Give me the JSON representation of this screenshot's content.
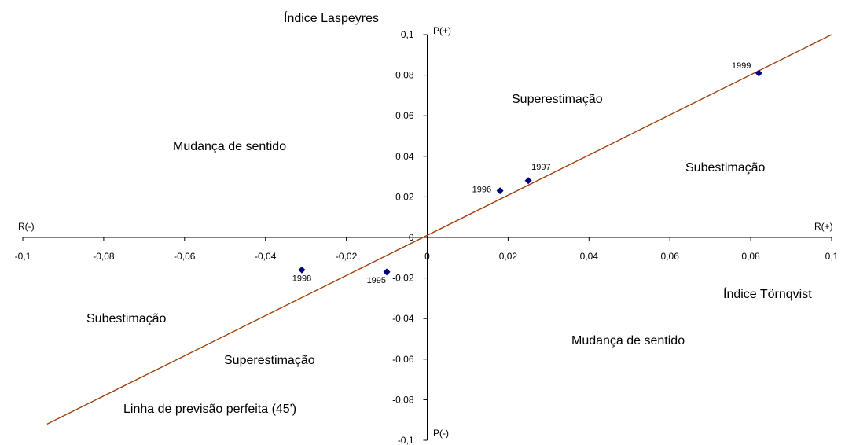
{
  "chart_data": {
    "type": "scatter",
    "ylabel": "Índice Laspeyres",
    "xlabel": "Índice Törnqvist",
    "xlim": [
      -0.1,
      0.1
    ],
    "ylim": [
      -0.1,
      0.1
    ],
    "x_ticks": [
      "-0,1",
      "-0,08",
      "-0,06",
      "-0,04",
      "-0,02",
      "0",
      "0,02",
      "0,04",
      "0,06",
      "0,08",
      "0,1"
    ],
    "y_ticks": [
      "0,1",
      "0,08",
      "0,06",
      "0,04",
      "0,02",
      "0",
      "-0,02",
      "-0,04",
      "-0,06",
      "-0,08",
      "-0,1"
    ],
    "direction_labels": {
      "p_plus": "P(+)",
      "p_minus": "P(-)",
      "r_plus": "R(+)",
      "r_minus": "R(-)"
    },
    "region_labels": {
      "superestimacao_top": "Superestimação",
      "subestimacao_right": "Subestimação",
      "mudanca_top_left": "Mudança de sentido",
      "mudanca_bottom_right": "Mudança de sentido",
      "subestimacao_left": "Subestimação",
      "superestimacao_bottom": "Superestimação",
      "linha": "Linha de previsão perfeita (45')"
    },
    "points": [
      {
        "label": "1995",
        "x": -0.01,
        "y": -0.017
      },
      {
        "label": "1996",
        "x": 0.018,
        "y": 0.023
      },
      {
        "label": "1997",
        "x": 0.025,
        "y": 0.028
      },
      {
        "label": "1998",
        "x": -0.031,
        "y": -0.016
      },
      {
        "label": "1999",
        "x": 0.082,
        "y": 0.081
      }
    ],
    "reference_line": {
      "from": [
        -0.094,
        -0.092
      ],
      "to": [
        0.1,
        0.1
      ]
    },
    "colors": {
      "points": "#000080",
      "line": "#a0400a",
      "axes": "#000000"
    },
    "grid": false
  }
}
